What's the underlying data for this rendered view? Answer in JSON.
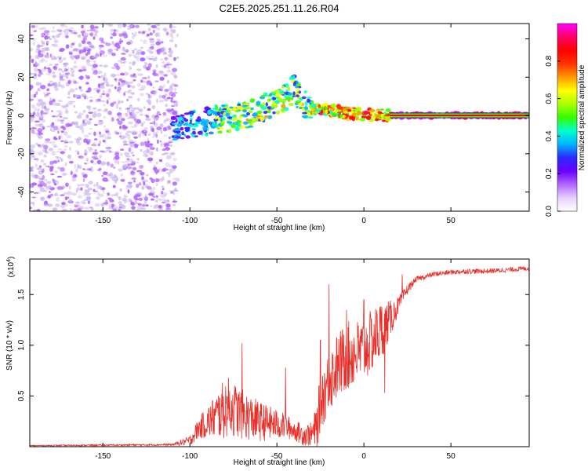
{
  "title": "C2E5.2025.251.11.26.R04",
  "colors": {
    "spec_lilac": "#c9b6ef",
    "spec_violet": "#8a2be2",
    "line_red": "#e8302a",
    "axis": "#000000"
  },
  "chart_data": [
    {
      "type": "heatmap",
      "name": "spectrogram",
      "xlabel": "Height of straight line (km)",
      "ylabel": "Frequency (Hz)",
      "xlim": [
        -192,
        95
      ],
      "ylim": [
        -50,
        48
      ],
      "xticks": [
        -150,
        -100,
        -50,
        0,
        50
      ],
      "xticks_text": [
        "-150",
        "-100",
        "-50",
        "0",
        "50"
      ],
      "yticks": [
        -40,
        -20,
        0,
        20,
        40
      ],
      "yticks_text": [
        "-40",
        "-20",
        "0",
        "20",
        "40"
      ],
      "ridge": {
        "x": [
          -105,
          -95,
          -85,
          -75,
          -65,
          -55,
          -45,
          -40,
          -35,
          -30,
          -20,
          -10,
          0,
          10,
          20,
          95
        ],
        "y": [
          -6,
          -4,
          -2,
          -1,
          1,
          5,
          10,
          14,
          6,
          4,
          3,
          1,
          0.5,
          0.2,
          0,
          0
        ]
      },
      "colorbar": {
        "label": "Normalized spectral amplitude",
        "range": [
          0,
          1
        ],
        "ticks": [
          0.0,
          0.2,
          0.4,
          0.6,
          0.8
        ],
        "ticks_text": [
          "0.0",
          "0.2",
          "0.4",
          "0.6",
          "0.8"
        ],
        "colors": [
          "#ffffff",
          "#e6d0ff",
          "#b266ff",
          "#6a00ff",
          "#2a2aff",
          "#00b4ff",
          "#00ffcc",
          "#33ff00",
          "#aaff00",
          "#ffff00",
          "#ff9900",
          "#ff3300",
          "#ff0000",
          "#ff0066",
          "#ff00ff"
        ]
      }
    },
    {
      "type": "line",
      "name": "snr",
      "xlabel": "Height of straight line (km)",
      "ylabel": "SNR (10 * v/v)",
      "multiplier": "(x10⁴)",
      "xlim": [
        -192,
        95
      ],
      "ylim": [
        0,
        1.85
      ],
      "xticks": [
        -150,
        -100,
        -50,
        0,
        50
      ],
      "xticks_text": [
        "-150",
        "-100",
        "-50",
        "0",
        "50"
      ],
      "yticks": [
        0.5,
        1.0,
        1.5
      ],
      "yticks_text": [
        "0.5",
        "1.0",
        "1.5"
      ],
      "envelope": {
        "x": [
          -192,
          -150,
          -110,
          -100,
          -95,
          -85,
          -78,
          -70,
          -60,
          -50,
          -45,
          -40,
          -35,
          -30,
          -27,
          -25,
          -20,
          -15,
          -10,
          -5,
          0,
          5,
          10,
          15,
          20,
          25,
          30,
          40,
          50,
          60,
          70,
          80,
          95
        ],
        "y": [
          0.01,
          0.015,
          0.02,
          0.06,
          0.18,
          0.3,
          0.4,
          0.32,
          0.25,
          0.22,
          0.2,
          0.16,
          0.12,
          0.12,
          0.2,
          0.45,
          0.65,
          0.8,
          0.88,
          0.92,
          0.95,
          1.05,
          1.15,
          1.25,
          1.4,
          1.55,
          1.65,
          1.7,
          1.72,
          1.73,
          1.73,
          1.74,
          1.76
        ]
      },
      "noise_amplitude": {
        "x": [
          -192,
          -110,
          -100,
          -90,
          -80,
          -60,
          -40,
          -30,
          -25,
          -10,
          10,
          20,
          30,
          95
        ],
        "y": [
          0.005,
          0.01,
          0.05,
          0.16,
          0.3,
          0.2,
          0.1,
          0.12,
          0.3,
          0.35,
          0.3,
          0.08,
          0.025,
          0.025
        ]
      },
      "spikes": [
        {
          "x": -70,
          "y": 1.02
        },
        {
          "x": -45,
          "y": 0.78
        },
        {
          "x": -25,
          "y": 1.05
        },
        {
          "x": -20,
          "y": 1.6
        },
        {
          "x": -15,
          "y": 0.9
        },
        {
          "x": -10,
          "y": 1.35
        },
        {
          "x": 0,
          "y": 1.45
        },
        {
          "x": 12,
          "y": 0.53
        },
        {
          "x": 22,
          "y": 1.7
        }
      ]
    }
  ]
}
